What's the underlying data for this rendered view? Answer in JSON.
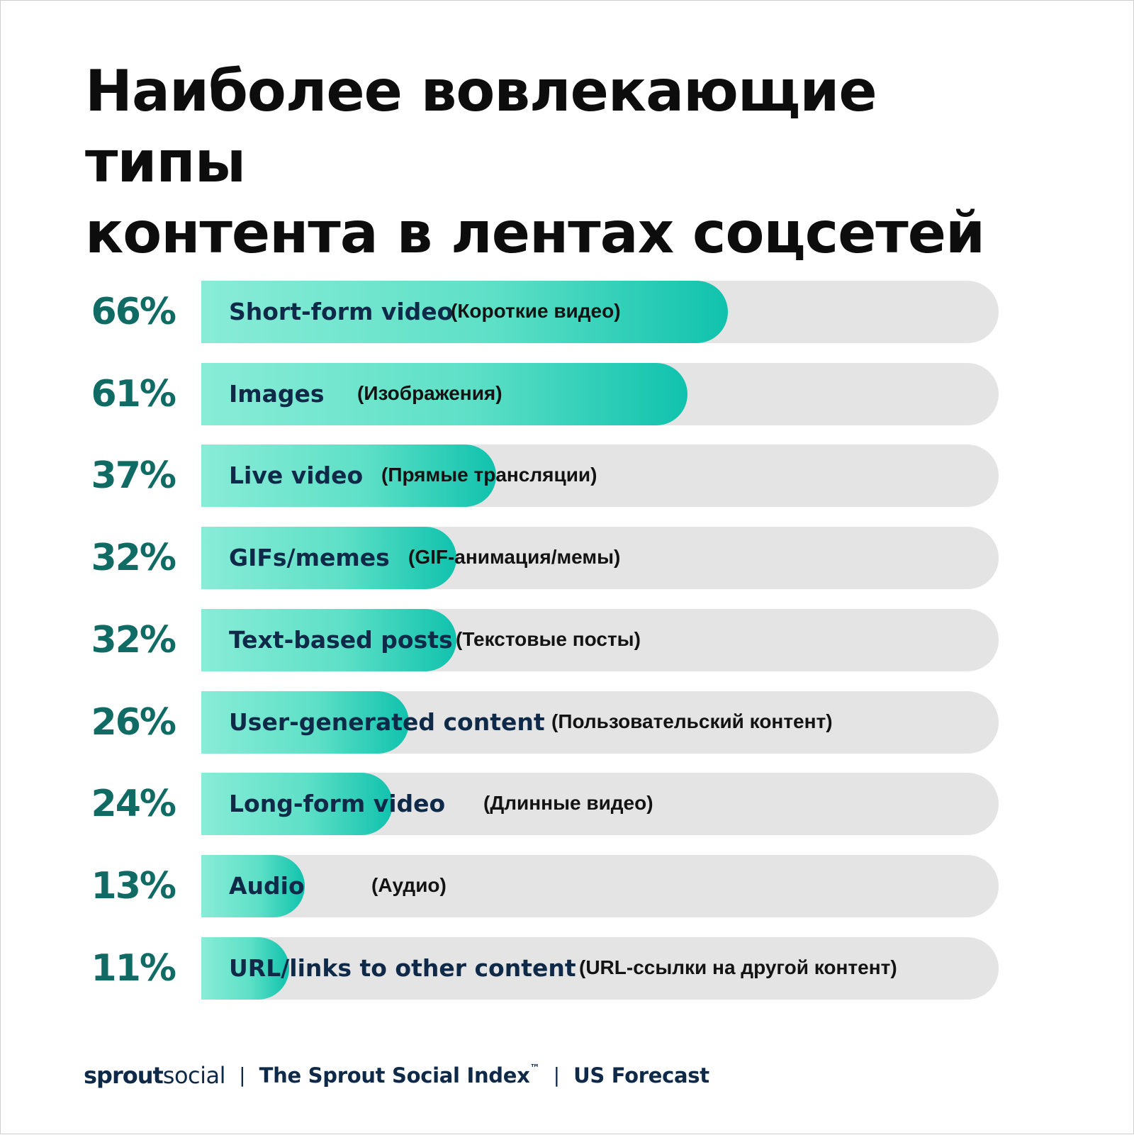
{
  "title": {
    "line1": "Наиболее вовлекающие типы",
    "line2": "контента в лентах соцсетей"
  },
  "chart_data": {
    "type": "bar",
    "orientation": "horizontal",
    "title": "Наиболее вовлекающие типы контента в лентах соцсетей",
    "ylim": [
      0,
      100
    ],
    "grid": false,
    "categories": [
      "Short-form video",
      "Images",
      "Live video",
      "GIFs/memes",
      "Text-based posts",
      "User-generated content",
      "Long-form video",
      "Audio",
      "URL/links to other content"
    ],
    "categories_ru": [
      "(Короткие видео)",
      "(Изображения)",
      "(Прямые трансляции)",
      "(GIF-анимация/мемы)",
      "(Текстовые посты)",
      "(Пользовательский контент)",
      "(Длинные видео)",
      "(Аудио)",
      "(URL-ссылки на другой контент)"
    ],
    "values": [
      66,
      61,
      37,
      32,
      32,
      26,
      24,
      13,
      11
    ],
    "value_labels": [
      "66%",
      "61%",
      "37%",
      "32%",
      "32%",
      "26%",
      "24%",
      "13%",
      "11%"
    ],
    "colors": {
      "fill_start": "#89ecd7",
      "fill_end": "#10c2ad",
      "track": "#e3e4e3",
      "percent": "#0f6b63",
      "label": "#0f2a49"
    }
  },
  "footer": {
    "brand_sprout": "sprout",
    "brand_social": "social",
    "separator": "|",
    "report": "The Sprout Social Index",
    "trademark": "™",
    "region": "US Forecast"
  }
}
